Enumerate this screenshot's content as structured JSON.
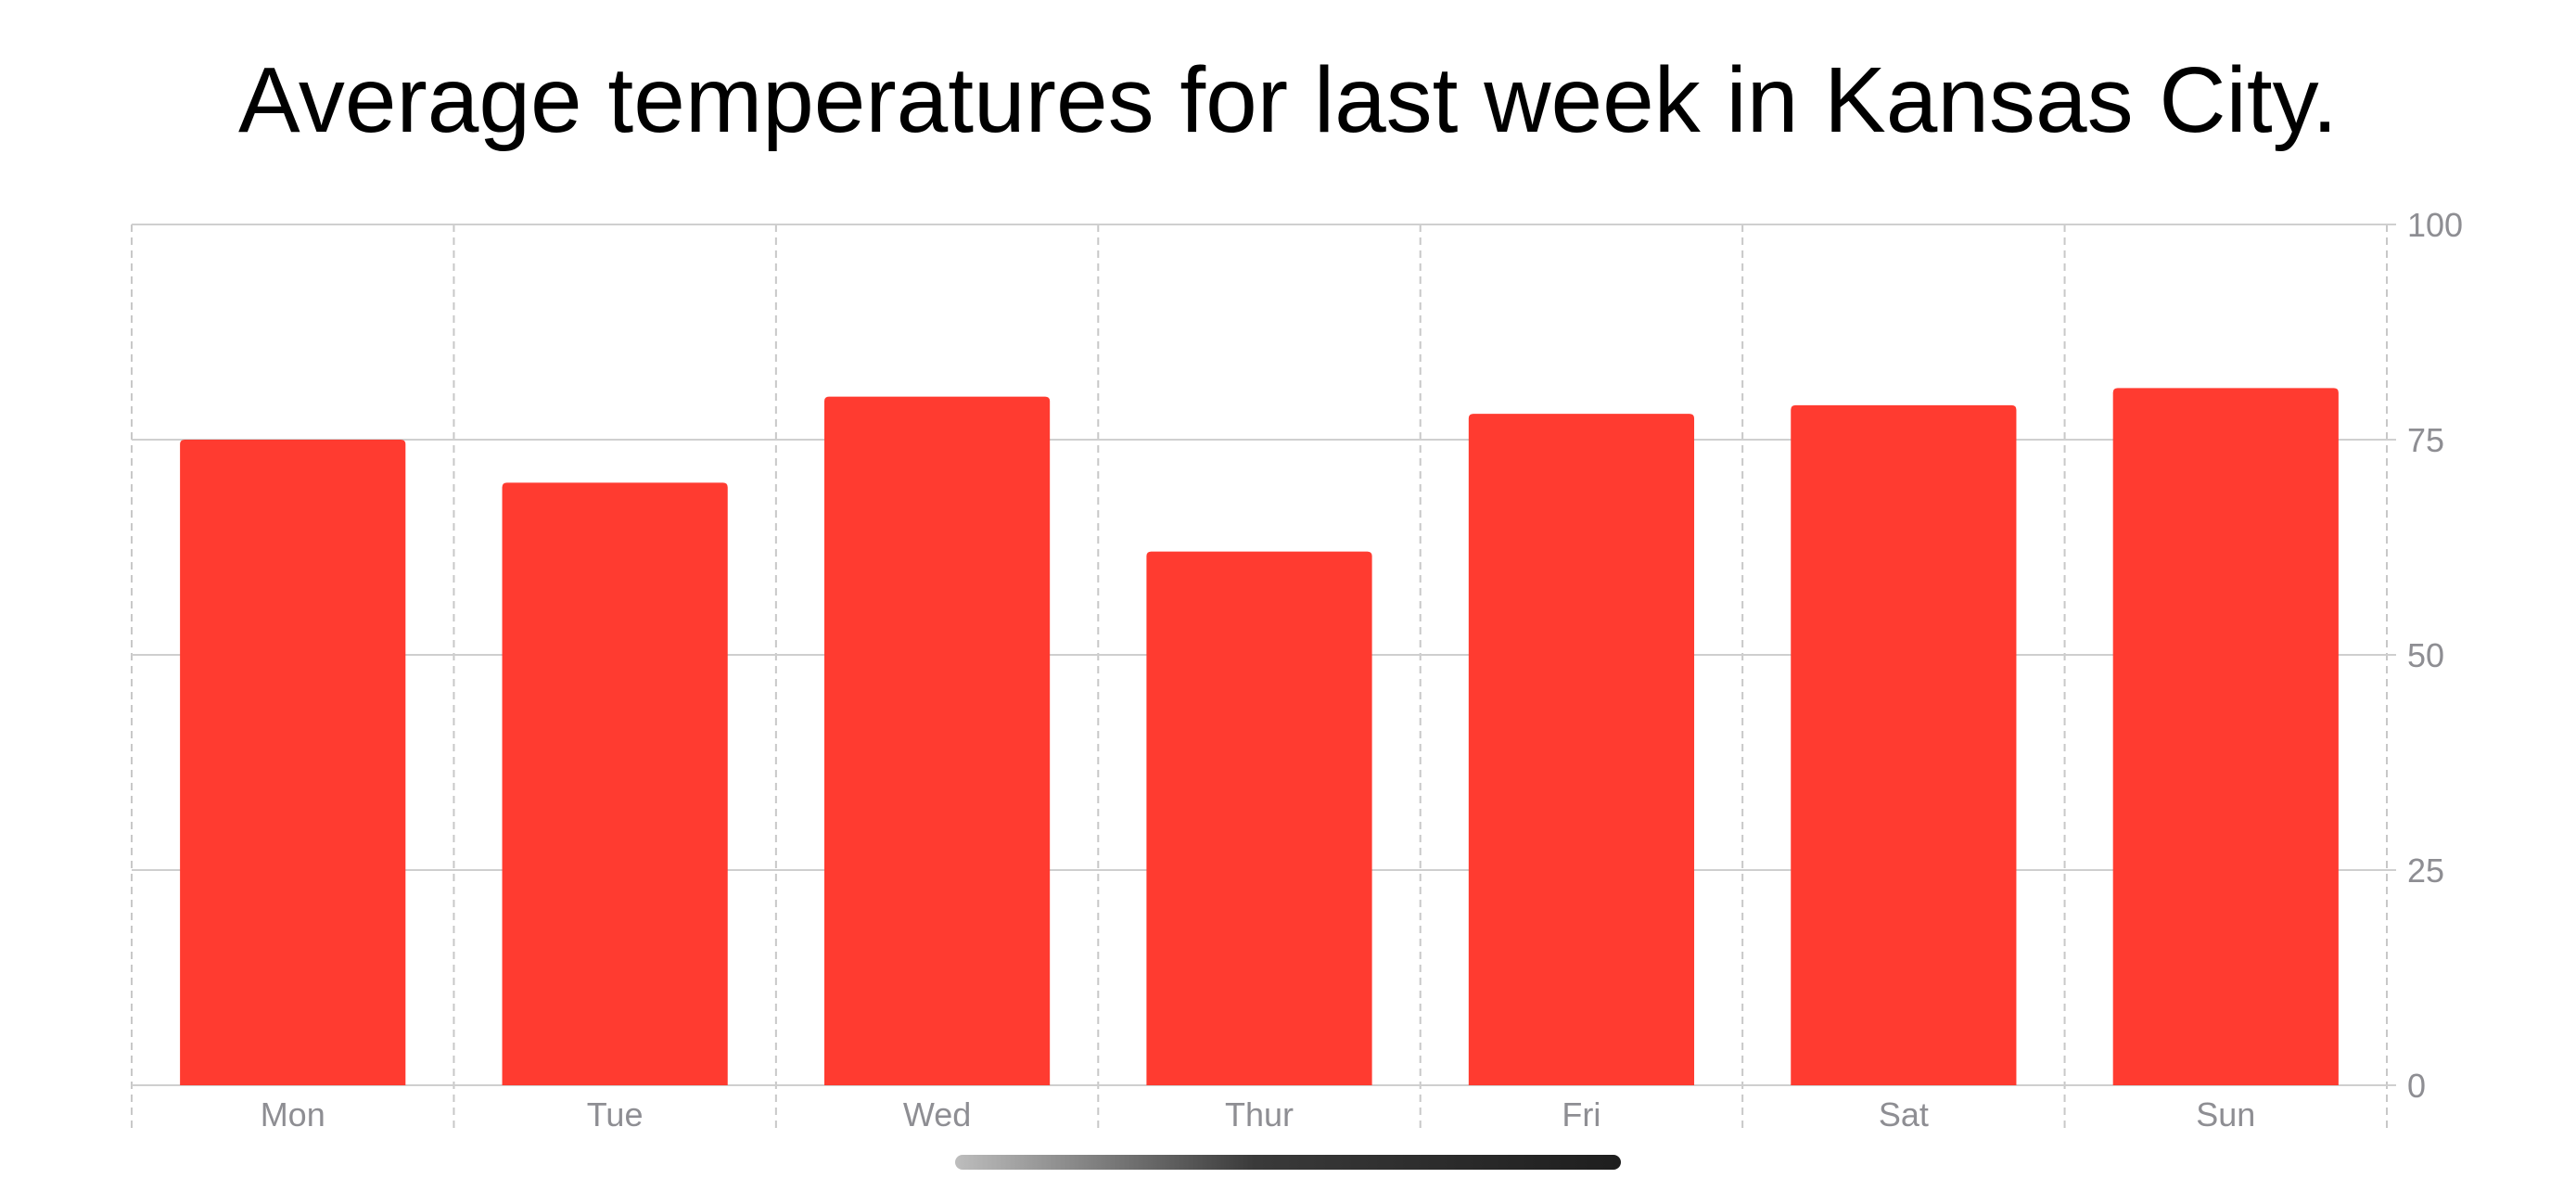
{
  "title": "Average temperatures for last week in Kansas City.",
  "chart_data": {
    "type": "bar",
    "title": "Average temperatures for last week in Kansas City.",
    "categories": [
      "Mon",
      "Tue",
      "Wed",
      "Thur",
      "Fri",
      "Sat",
      "Sun"
    ],
    "values": [
      75,
      70,
      80,
      62,
      78,
      79,
      81
    ],
    "ylim": [
      0,
      100
    ],
    "yticks": [
      "0",
      "25",
      "50",
      "75",
      "100"
    ],
    "y_axis_side": "right",
    "grid": true,
    "legend": "none",
    "bar_color": "#ff3b30"
  }
}
